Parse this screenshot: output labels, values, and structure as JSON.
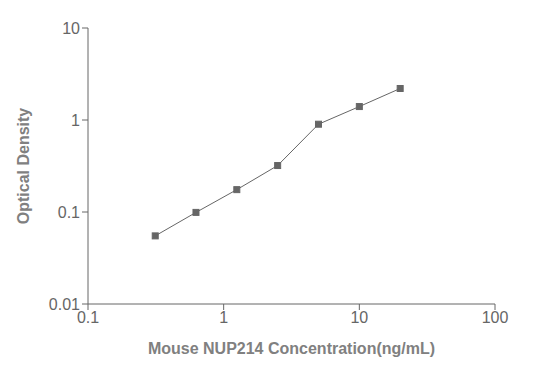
{
  "chart_data": {
    "type": "line",
    "x": [
      0.313,
      0.625,
      1.25,
      2.5,
      5.0,
      10.0,
      20.0
    ],
    "values": [
      0.055,
      0.099,
      0.175,
      0.32,
      0.9,
      1.4,
      2.2
    ],
    "xlabel": "Mouse NUP214 Concentration(ng/mL)",
    "ylabel": "Optical Density",
    "xlim": [
      0.1,
      100
    ],
    "ylim": [
      0.01,
      10
    ],
    "xticks": [
      0.1,
      1,
      10,
      100
    ],
    "yticks": [
      0.01,
      0.1,
      1,
      10
    ],
    "log": true,
    "color": "#666666",
    "marker": "square",
    "grid": false
  }
}
